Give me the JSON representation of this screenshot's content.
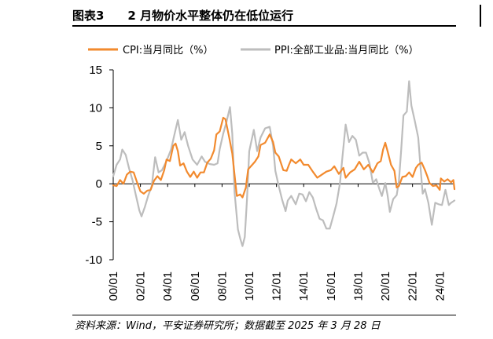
{
  "figure": {
    "title": "图表3　　2 月物价水平整体仍在低位运行",
    "source": "资料来源：Wind，平安证券研究所；数据截至 2025 年 3 月 28 日"
  },
  "chart_data": {
    "type": "line",
    "title": "",
    "xlabel": "",
    "ylabel": "",
    "ylim": [
      -10,
      15
    ],
    "yticks": [
      -10,
      -5,
      0,
      5,
      10,
      15
    ],
    "xlim": [
      "2000-01",
      "2025-02"
    ],
    "xticks": [
      "00/01",
      "02/01",
      "04/01",
      "06/01",
      "08/01",
      "10/01",
      "12/01",
      "14/01",
      "16/01",
      "18/01",
      "20/01",
      "22/01",
      "24/01"
    ],
    "legend_position": "top",
    "grid": false,
    "series": [
      {
        "name": "CPI:当月同比（%）",
        "color": "#F28A2E",
        "points": [
          [
            "2000-01",
            -0.2
          ],
          [
            "2000-04",
            -0.3
          ],
          [
            "2000-07",
            0.5
          ],
          [
            "2000-10",
            0.0
          ],
          [
            "2001-01",
            1.2
          ],
          [
            "2001-04",
            1.6
          ],
          [
            "2001-07",
            1.5
          ],
          [
            "2001-10",
            0.2
          ],
          [
            "2002-01",
            -1.0
          ],
          [
            "2002-04",
            -1.3
          ],
          [
            "2002-07",
            -0.9
          ],
          [
            "2002-10",
            -0.8
          ],
          [
            "2003-01",
            0.4
          ],
          [
            "2003-04",
            1.0
          ],
          [
            "2003-07",
            0.5
          ],
          [
            "2003-10",
            1.8
          ],
          [
            "2003-12",
            3.2
          ],
          [
            "2004-03",
            3.0
          ],
          [
            "2004-06",
            5.0
          ],
          [
            "2004-08",
            5.3
          ],
          [
            "2004-10",
            4.3
          ],
          [
            "2004-12",
            2.4
          ],
          [
            "2005-03",
            2.7
          ],
          [
            "2005-06",
            1.6
          ],
          [
            "2005-09",
            0.9
          ],
          [
            "2005-12",
            1.6
          ],
          [
            "2006-03",
            0.8
          ],
          [
            "2006-06",
            1.5
          ],
          [
            "2006-09",
            1.5
          ],
          [
            "2006-12",
            2.8
          ],
          [
            "2007-03",
            3.3
          ],
          [
            "2007-06",
            4.4
          ],
          [
            "2007-08",
            6.5
          ],
          [
            "2007-11",
            6.9
          ],
          [
            "2008-02",
            8.7
          ],
          [
            "2008-04",
            8.5
          ],
          [
            "2008-07",
            6.3
          ],
          [
            "2008-10",
            4.0
          ],
          [
            "2008-12",
            1.2
          ],
          [
            "2009-02",
            -1.6
          ],
          [
            "2009-05",
            -1.4
          ],
          [
            "2009-07",
            -1.8
          ],
          [
            "2009-10",
            -0.5
          ],
          [
            "2009-12",
            1.9
          ],
          [
            "2010-03",
            2.4
          ],
          [
            "2010-06",
            2.9
          ],
          [
            "2010-09",
            3.6
          ],
          [
            "2010-11",
            5.1
          ],
          [
            "2011-03",
            5.4
          ],
          [
            "2011-07",
            6.5
          ],
          [
            "2011-10",
            5.5
          ],
          [
            "2011-12",
            4.1
          ],
          [
            "2012-03",
            3.6
          ],
          [
            "2012-07",
            1.8
          ],
          [
            "2012-10",
            1.7
          ],
          [
            "2012-12",
            2.5
          ],
          [
            "2013-02",
            3.2
          ],
          [
            "2013-06",
            2.7
          ],
          [
            "2013-10",
            3.2
          ],
          [
            "2014-01",
            2.5
          ],
          [
            "2014-05",
            2.5
          ],
          [
            "2014-09",
            1.6
          ],
          [
            "2015-01",
            0.8
          ],
          [
            "2015-05",
            1.2
          ],
          [
            "2015-09",
            1.6
          ],
          [
            "2016-01",
            1.8
          ],
          [
            "2016-04",
            2.3
          ],
          [
            "2016-08",
            1.3
          ],
          [
            "2016-12",
            2.1
          ],
          [
            "2017-02",
            0.8
          ],
          [
            "2017-06",
            1.5
          ],
          [
            "2017-10",
            1.9
          ],
          [
            "2018-02",
            2.9
          ],
          [
            "2018-06",
            1.9
          ],
          [
            "2018-10",
            2.5
          ],
          [
            "2019-02",
            1.5
          ],
          [
            "2019-06",
            2.7
          ],
          [
            "2019-09",
            3.0
          ],
          [
            "2019-11",
            4.5
          ],
          [
            "2020-01",
            5.4
          ],
          [
            "2020-03",
            4.3
          ],
          [
            "2020-06",
            2.5
          ],
          [
            "2020-09",
            1.7
          ],
          [
            "2020-11",
            -0.5
          ],
          [
            "2021-01",
            -0.3
          ],
          [
            "2021-04",
            0.9
          ],
          [
            "2021-07",
            1.0
          ],
          [
            "2021-10",
            1.5
          ],
          [
            "2022-01",
            0.9
          ],
          [
            "2022-04",
            2.1
          ],
          [
            "2022-06",
            2.5
          ],
          [
            "2022-09",
            2.8
          ],
          [
            "2022-12",
            1.8
          ],
          [
            "2023-02",
            1.0
          ],
          [
            "2023-04",
            0.1
          ],
          [
            "2023-07",
            -0.3
          ],
          [
            "2023-10",
            -0.2
          ],
          [
            "2024-01",
            -0.8
          ],
          [
            "2024-02",
            0.7
          ],
          [
            "2024-05",
            0.3
          ],
          [
            "2024-08",
            0.6
          ],
          [
            "2024-11",
            0.2
          ],
          [
            "2025-01",
            0.5
          ],
          [
            "2025-02",
            -0.7
          ]
        ]
      },
      {
        "name": "PPI:全部工业品:当月同比（%）",
        "color": "#BDBDBD",
        "points": [
          [
            "2000-01",
            1.0
          ],
          [
            "2000-04",
            2.5
          ],
          [
            "2000-07",
            3.2
          ],
          [
            "2000-09",
            4.5
          ],
          [
            "2000-12",
            3.8
          ],
          [
            "2001-03",
            2.0
          ],
          [
            "2001-06",
            0.5
          ],
          [
            "2001-09",
            -1.5
          ],
          [
            "2001-12",
            -3.5
          ],
          [
            "2002-02",
            -4.3
          ],
          [
            "2002-05",
            -3.0
          ],
          [
            "2002-08",
            -1.5
          ],
          [
            "2002-11",
            -0.3
          ],
          [
            "2003-02",
            3.5
          ],
          [
            "2003-05",
            1.5
          ],
          [
            "2003-08",
            1.8
          ],
          [
            "2003-12",
            3.0
          ],
          [
            "2004-04",
            4.5
          ],
          [
            "2004-07",
            6.5
          ],
          [
            "2004-10",
            8.4
          ],
          [
            "2005-01",
            5.8
          ],
          [
            "2005-04",
            6.8
          ],
          [
            "2005-07",
            5.0
          ],
          [
            "2005-11",
            3.2
          ],
          [
            "2006-03",
            2.5
          ],
          [
            "2006-07",
            3.6
          ],
          [
            "2006-10",
            2.9
          ],
          [
            "2007-02",
            2.6
          ],
          [
            "2007-06",
            2.5
          ],
          [
            "2007-09",
            2.7
          ],
          [
            "2007-11",
            4.6
          ],
          [
            "2008-02",
            6.6
          ],
          [
            "2008-05",
            8.2
          ],
          [
            "2008-08",
            10.1
          ],
          [
            "2008-10",
            6.6
          ],
          [
            "2008-12",
            -1.1
          ],
          [
            "2009-03",
            -6.0
          ],
          [
            "2009-05",
            -7.2
          ],
          [
            "2009-07",
            -8.2
          ],
          [
            "2009-09",
            -7.0
          ],
          [
            "2009-11",
            -2.1
          ],
          [
            "2010-01",
            4.3
          ],
          [
            "2010-05",
            7.1
          ],
          [
            "2010-08",
            4.3
          ],
          [
            "2010-11",
            6.1
          ],
          [
            "2011-03",
            7.3
          ],
          [
            "2011-07",
            7.5
          ],
          [
            "2011-10",
            5.0
          ],
          [
            "2011-12",
            1.7
          ],
          [
            "2012-03",
            -0.3
          ],
          [
            "2012-06",
            -2.1
          ],
          [
            "2012-09",
            -3.6
          ],
          [
            "2012-11",
            -2.2
          ],
          [
            "2013-02",
            -1.6
          ],
          [
            "2013-06",
            -2.7
          ],
          [
            "2013-09",
            -1.3
          ],
          [
            "2013-12",
            -1.4
          ],
          [
            "2014-03",
            -2.3
          ],
          [
            "2014-06",
            -1.1
          ],
          [
            "2014-09",
            -1.8
          ],
          [
            "2014-12",
            -3.3
          ],
          [
            "2015-03",
            -4.6
          ],
          [
            "2015-06",
            -4.8
          ],
          [
            "2015-09",
            -5.9
          ],
          [
            "2015-12",
            -5.9
          ],
          [
            "2016-03",
            -4.3
          ],
          [
            "2016-06",
            -2.6
          ],
          [
            "2016-09",
            0.1
          ],
          [
            "2016-11",
            3.3
          ],
          [
            "2017-02",
            7.8
          ],
          [
            "2017-05",
            5.5
          ],
          [
            "2017-08",
            6.3
          ],
          [
            "2017-11",
            5.8
          ],
          [
            "2018-02",
            3.7
          ],
          [
            "2018-05",
            4.1
          ],
          [
            "2018-08",
            4.1
          ],
          [
            "2018-11",
            2.7
          ],
          [
            "2019-02",
            0.1
          ],
          [
            "2019-05",
            0.6
          ],
          [
            "2019-08",
            -0.8
          ],
          [
            "2019-10",
            -1.6
          ],
          [
            "2020-01",
            0.1
          ],
          [
            "2020-03",
            -1.5
          ],
          [
            "2020-05",
            -3.7
          ],
          [
            "2020-08",
            -2.0
          ],
          [
            "2020-11",
            -1.5
          ],
          [
            "2021-01",
            0.3
          ],
          [
            "2021-03",
            4.4
          ],
          [
            "2021-05",
            9.0
          ],
          [
            "2021-08",
            9.5
          ],
          [
            "2021-10",
            13.5
          ],
          [
            "2021-12",
            10.3
          ],
          [
            "2022-03",
            8.3
          ],
          [
            "2022-06",
            6.1
          ],
          [
            "2022-08",
            2.3
          ],
          [
            "2022-10",
            -1.3
          ],
          [
            "2022-12",
            -0.7
          ],
          [
            "2023-03",
            -2.5
          ],
          [
            "2023-06",
            -5.4
          ],
          [
            "2023-09",
            -2.5
          ],
          [
            "2023-12",
            -2.7
          ],
          [
            "2024-03",
            -2.8
          ],
          [
            "2024-06",
            -0.8
          ],
          [
            "2024-09",
            -2.8
          ],
          [
            "2024-11",
            -2.5
          ],
          [
            "2025-01",
            -2.3
          ],
          [
            "2025-02",
            -2.2
          ]
        ]
      }
    ]
  }
}
